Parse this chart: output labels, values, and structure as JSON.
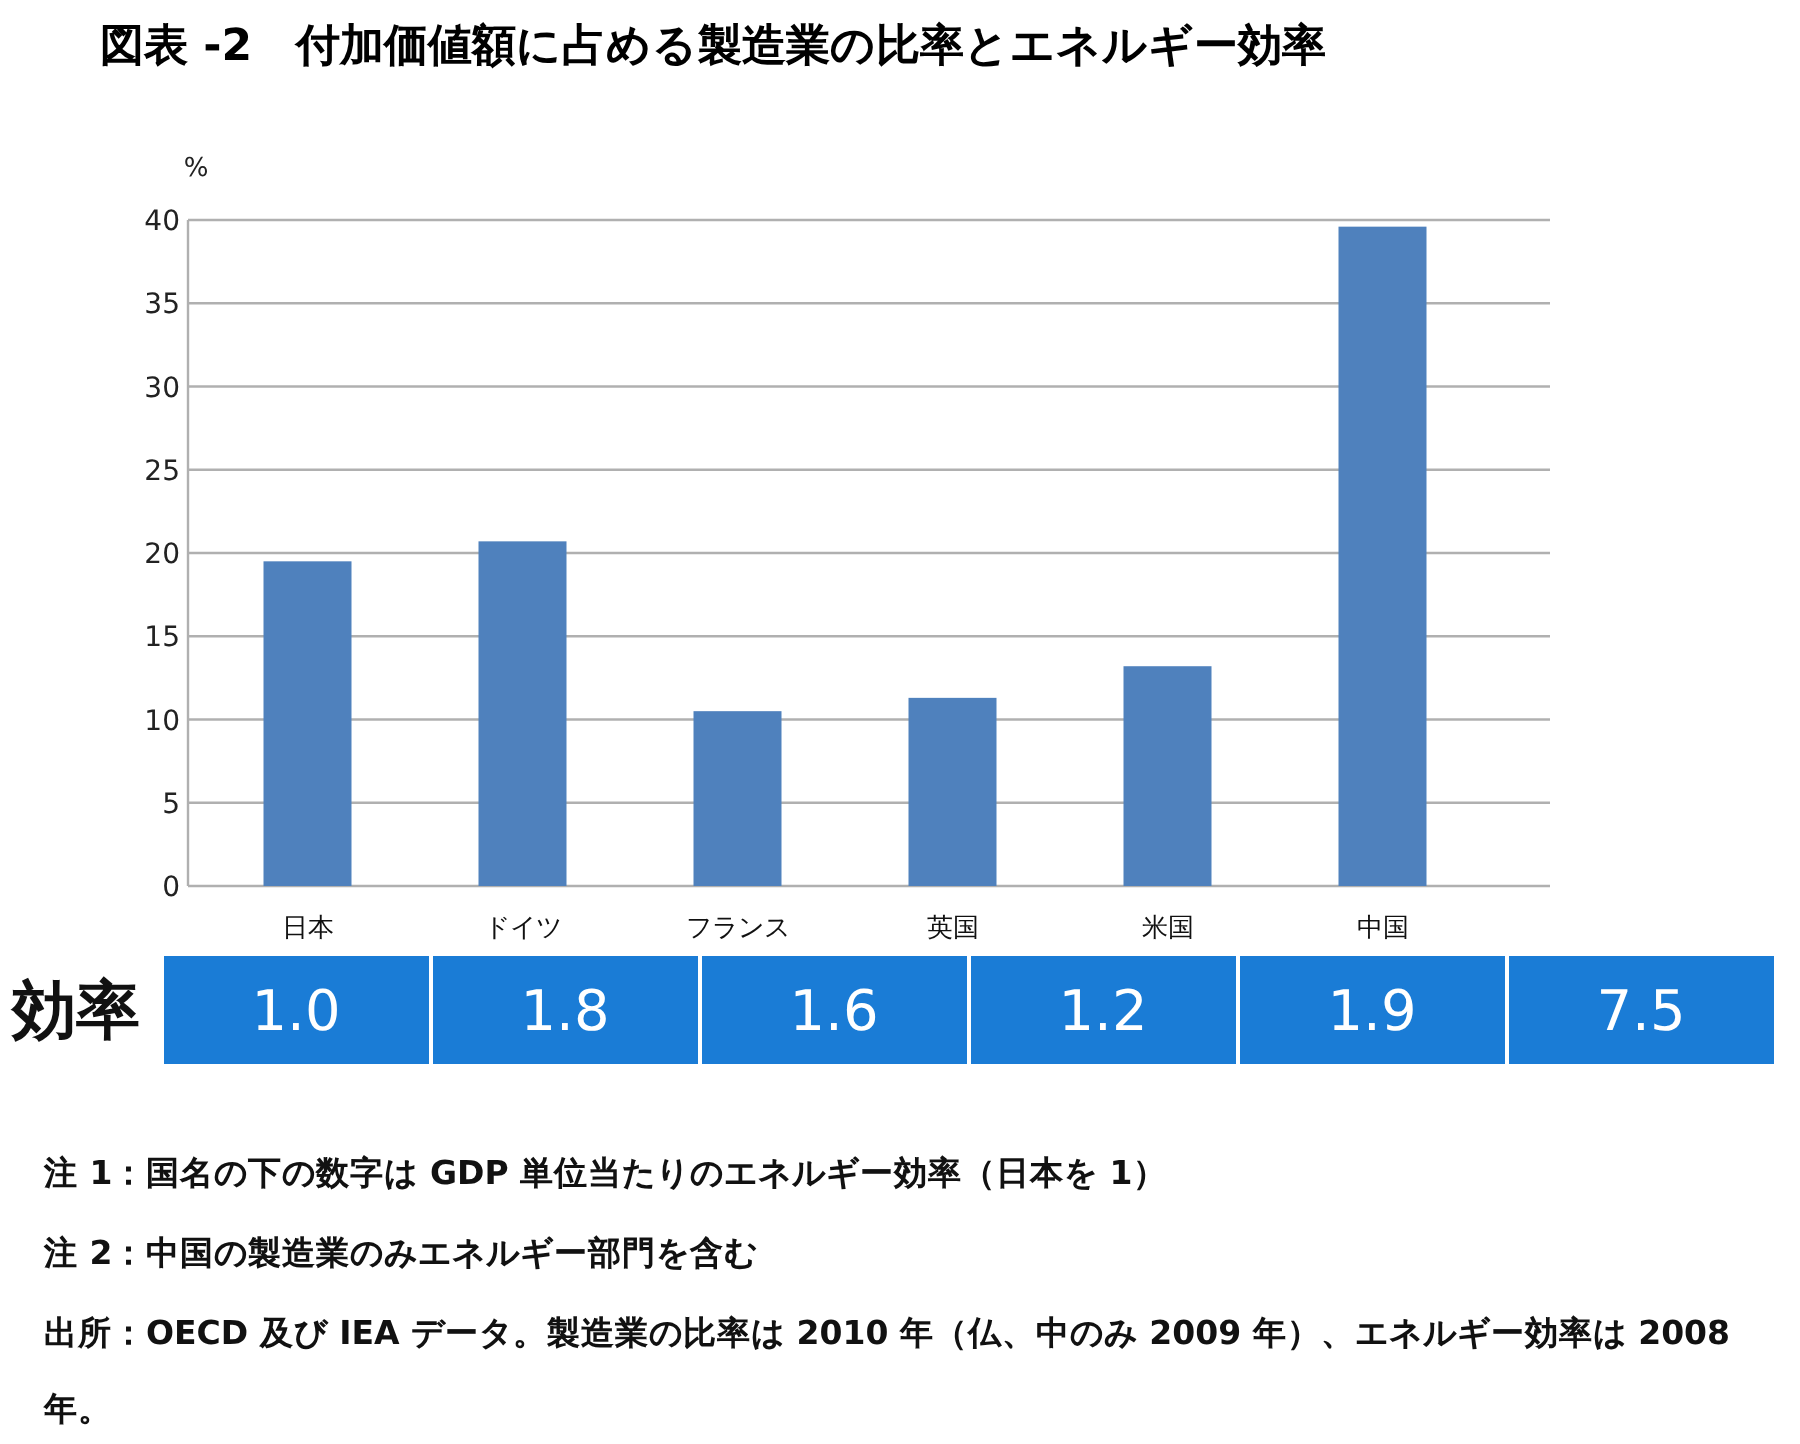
{
  "chart_data": [
    {
      "type": "bar",
      "title": "図表 -2　付加価値額に占める製造業の比率とエネルギー効率",
      "ylabel": "%",
      "categories": [
        "日本",
        "ドイツ",
        "フランス",
        "英国",
        "米国",
        "中国"
      ],
      "values": [
        19.5,
        20.7,
        10.5,
        11.3,
        13.2,
        39.6
      ],
      "color": "#4f81bd",
      "ylim": [
        0,
        40
      ],
      "yticks": [
        0,
        5,
        10,
        15,
        20,
        25,
        30,
        35,
        40
      ],
      "grid": "y",
      "annotations": [
        "注 1：国名の下の数字は GDP 単位当たりのエネルギー効率（日本を 1）",
        "注 2：中国の製造業のみエネルギー部門を含む",
        "出所：OECD 及び IEA データ。製造業の比率は 2010 年（仏、中のみ 2009 年）、エネルギー効率は 2008 年。"
      ]
    },
    {
      "type": "other",
      "ylabel": "効率",
      "categories": [
        null,
        null,
        null,
        null,
        null,
        null
      ],
      "values": [
        1.0,
        1.8,
        1.6,
        1.2,
        1.9,
        7.5
      ],
      "value_labels": [
        "1.0",
        "1.8",
        "1.6",
        "1.2",
        "1.9",
        "7.5"
      ]
    }
  ]
}
